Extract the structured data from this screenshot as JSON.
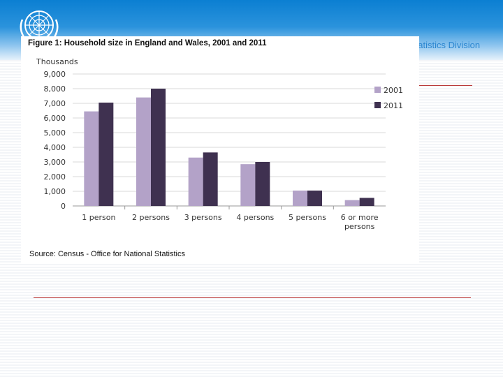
{
  "slide": {
    "org_name": "Statistics Division",
    "colors": {
      "header_blue": "#0b7fd2",
      "rule_red": "#b93a3a"
    },
    "logo_icon": "un-emblem-icon"
  },
  "figure": {
    "title": "Figure 1: Household size in England and Wales, 2001 and 2011",
    "source": "Source: Census - Office for National Statistics"
  },
  "chart_data": {
    "type": "bar",
    "ylabel": "Thousands",
    "xlabel": "",
    "ylim": [
      0,
      9000
    ],
    "yticks": [
      "0",
      "1,000",
      "2,000",
      "3,000",
      "4,000",
      "5,000",
      "6,000",
      "7,000",
      "8,000",
      "9,000"
    ],
    "categories": [
      "1 person",
      "2 persons",
      "3 persons",
      "4 persons",
      "5 persons",
      "6 or more persons"
    ],
    "category_lines": [
      [
        "1 person"
      ],
      [
        "2 persons"
      ],
      [
        "3 persons"
      ],
      [
        "4 persons"
      ],
      [
        "5 persons"
      ],
      [
        "6 or more",
        "persons"
      ]
    ],
    "series": [
      {
        "name": "2001",
        "color": "#b3a2c8",
        "values": [
          6450,
          7400,
          3300,
          2850,
          1050,
          400
        ]
      },
      {
        "name": "2011",
        "color": "#3f3150",
        "values": [
          7050,
          8000,
          3650,
          3000,
          1050,
          550
        ]
      }
    ],
    "legend_position": "right",
    "grid": true
  }
}
